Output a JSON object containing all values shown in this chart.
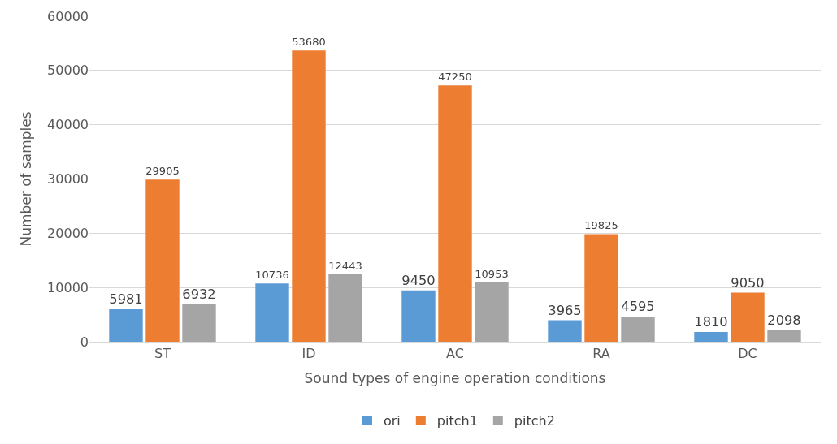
{
  "chart_data": {
    "type": "bar",
    "xlabel": "Sound types of engine operation conditions",
    "ylabel": "Number of samples",
    "categories": [
      "ST",
      "ID",
      "AC",
      "RA",
      "DC"
    ],
    "series": [
      {
        "name": "ori",
        "color": "#5b9bd5",
        "values": [
          5981,
          10736,
          9450,
          3965,
          1810
        ]
      },
      {
        "name": "pitch1",
        "color": "#ed7d31",
        "values": [
          29905,
          53680,
          47250,
          19825,
          9050
        ]
      },
      {
        "name": "pitch2",
        "color": "#a5a5a5",
        "values": [
          6932,
          12443,
          10953,
          4595,
          2098
        ]
      }
    ],
    "ylim": [
      0,
      60000
    ],
    "yticks": [
      0,
      10000,
      20000,
      30000,
      40000,
      50000,
      60000
    ],
    "grid": "y",
    "legend": "bottom",
    "data_labels": true
  }
}
